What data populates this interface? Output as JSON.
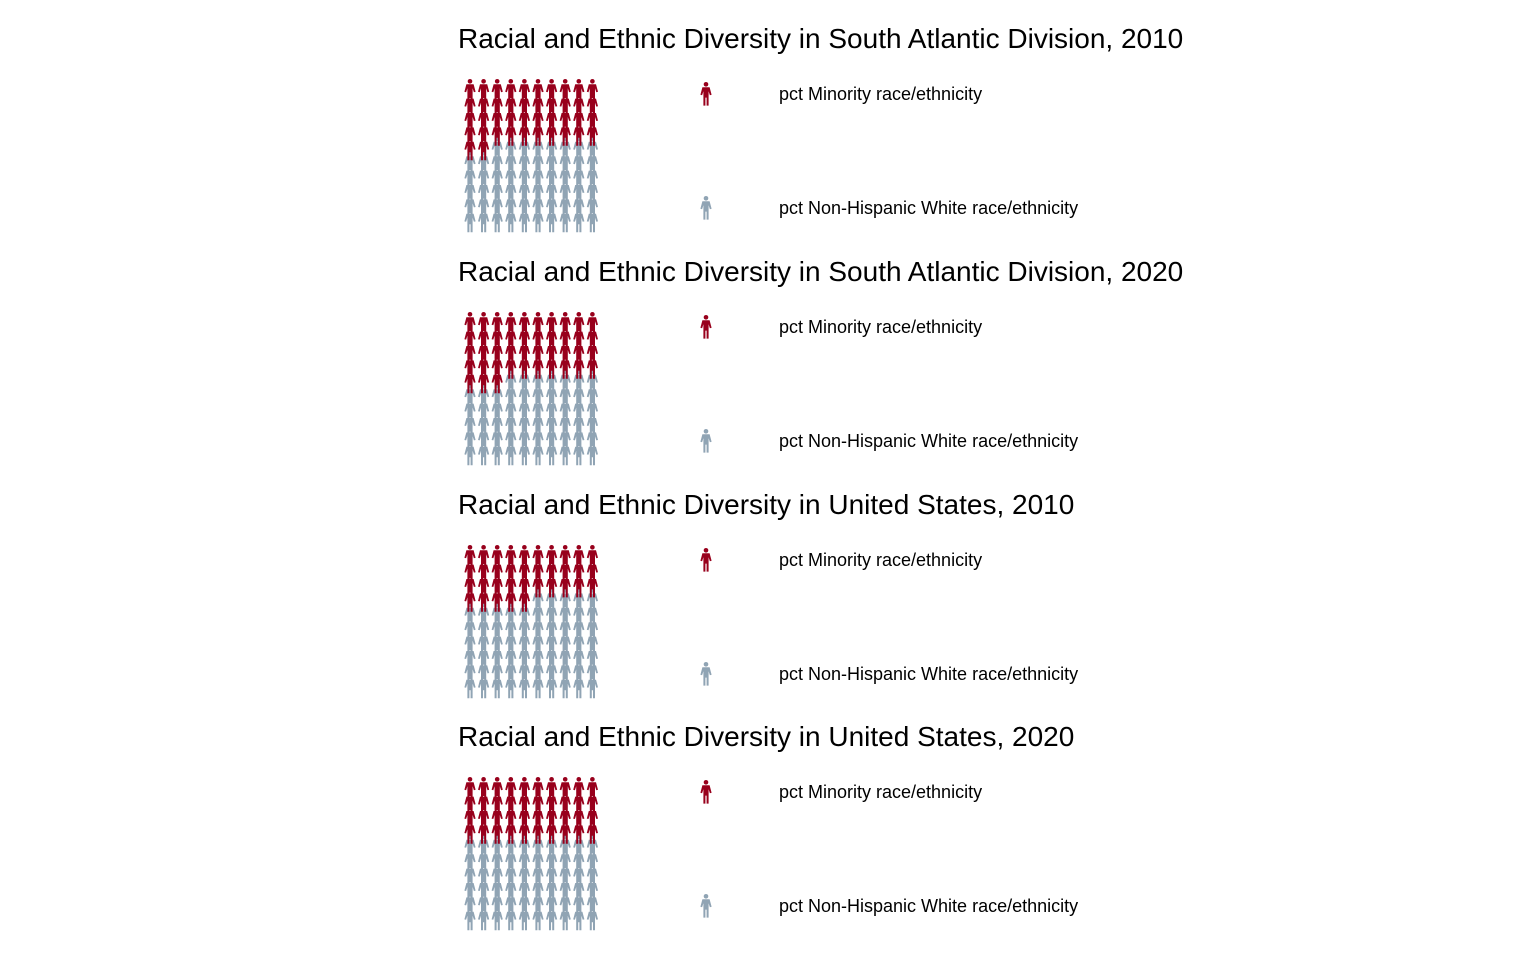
{
  "colors": {
    "minority": "#98001c",
    "white": "#90a4b4",
    "background": "#ffffff"
  },
  "icon": "person-icon",
  "chart_data": [
    {
      "type": "waffle",
      "title": "Racial and Ethnic Diversity in South Atlantic Division, 2010",
      "grid": {
        "rows": 10,
        "cols": 10
      },
      "categories": [
        "pct Minority race/ethnicity",
        "pct Non-Hispanic White race/ethnicity"
      ],
      "values": [
        42,
        58
      ],
      "legend": [
        {
          "label": "pct Minority race/ethnicity",
          "color": "#98001c"
        },
        {
          "label": "pct Non-Hispanic White race/ethnicity",
          "color": "#90a4b4"
        }
      ]
    },
    {
      "type": "waffle",
      "title": "Racial and Ethnic Diversity in South Atlantic Division, 2020",
      "grid": {
        "rows": 10,
        "cols": 10
      },
      "categories": [
        "pct Minority race/ethnicity",
        "pct Non-Hispanic White race/ethnicity"
      ],
      "values": [
        43,
        57
      ],
      "legend": [
        {
          "label": "pct Minority race/ethnicity",
          "color": "#98001c"
        },
        {
          "label": "pct Non-Hispanic White race/ethnicity",
          "color": "#90a4b4"
        }
      ]
    },
    {
      "type": "waffle",
      "title": "Racial and Ethnic Diversity in United States, 2010",
      "grid": {
        "rows": 10,
        "cols": 10
      },
      "categories": [
        "pct Minority race/ethnicity",
        "pct Non-Hispanic White race/ethnicity"
      ],
      "values": [
        35,
        65
      ],
      "legend": [
        {
          "label": "pct Minority race/ethnicity",
          "color": "#98001c"
        },
        {
          "label": "pct Non-Hispanic White race/ethnicity",
          "color": "#90a4b4"
        }
      ]
    },
    {
      "type": "waffle",
      "title": "Racial and Ethnic Diversity in United States, 2020",
      "grid": {
        "rows": 10,
        "cols": 10
      },
      "categories": [
        "pct Minority race/ethnicity",
        "pct Non-Hispanic White race/ethnicity"
      ],
      "values": [
        40,
        60
      ],
      "legend": [
        {
          "label": "pct Minority race/ethnicity",
          "color": "#98001c"
        },
        {
          "label": "pct Non-Hispanic White race/ethnicity",
          "color": "#90a4b4"
        }
      ]
    }
  ]
}
